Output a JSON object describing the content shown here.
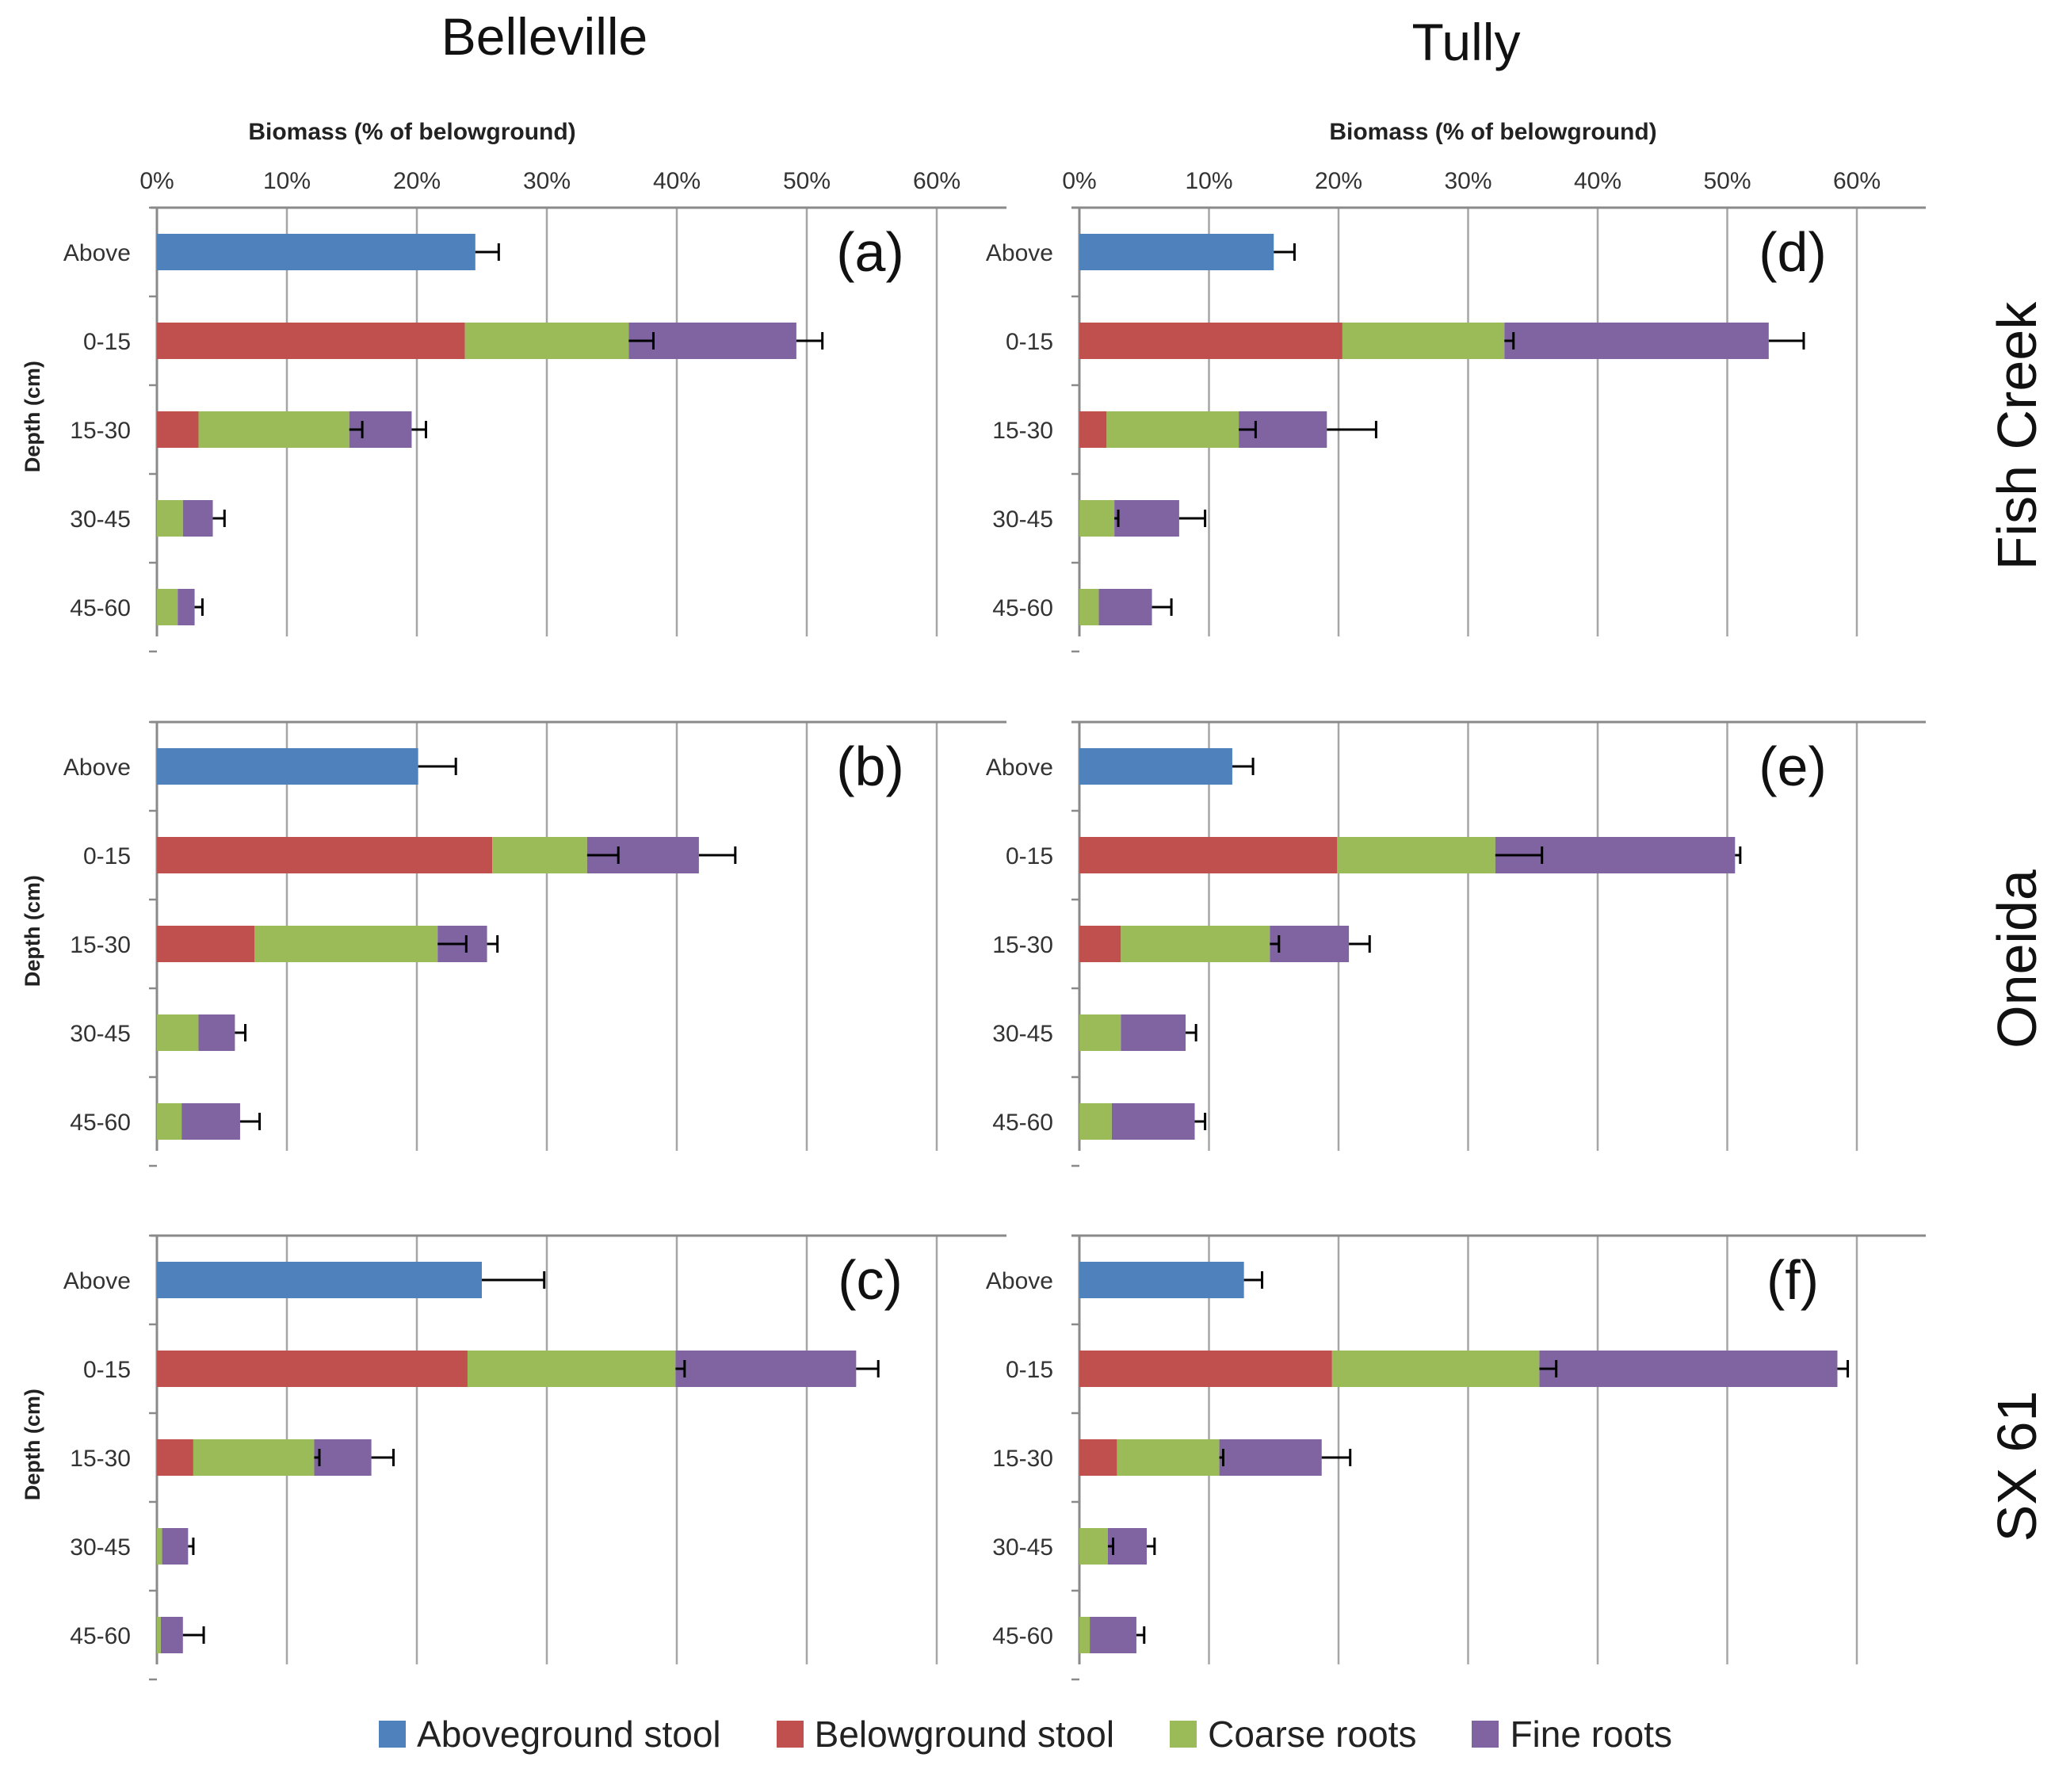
{
  "columns": [
    "Belleville",
    "Tully"
  ],
  "rows": [
    "Fish Creek",
    "Oneida",
    "SX 61"
  ],
  "xlabel": "Biomass (% of belowground)",
  "ylabel": "Depth (cm)",
  "colors": {
    "Aboveground stool": "#4f81bd",
    "Belowground stool": "#c0504d",
    "Coarse roots": "#9bbb59",
    "Fine roots": "#8064a2"
  },
  "legend": [
    "Aboveground stool",
    "Belowground stool",
    "Coarse roots",
    "Fine roots"
  ],
  "chart_data": [
    {
      "type": "bar",
      "orientation": "horizontal",
      "stacked": true,
      "panel": "(a)",
      "site": "Belleville",
      "clone": "Fish Creek",
      "xlabel": "Biomass (% of belowground)",
      "ylabel": "Depth (cm)",
      "xlim": [
        0,
        65
      ],
      "xticks": [
        "0%",
        "10%",
        "20%",
        "30%",
        "40%",
        "50%",
        "60%"
      ],
      "categories": [
        "Above",
        "0-15",
        "15-30",
        "30-45",
        "45-60"
      ],
      "series": [
        {
          "name": "Aboveground stool",
          "values": [
            24.5,
            0,
            0,
            0,
            0
          ],
          "errors": [
            1.8,
            0,
            0,
            0,
            0
          ]
        },
        {
          "name": "Belowground stool",
          "values": [
            0,
            23.7,
            3.2,
            0,
            0
          ],
          "errors": [
            0,
            0,
            0,
            0,
            0
          ]
        },
        {
          "name": "Coarse roots",
          "values": [
            0,
            12.6,
            11.6,
            2.0,
            1.6
          ],
          "errors": [
            0,
            1.9,
            1.0,
            0,
            0
          ]
        },
        {
          "name": "Fine roots",
          "values": [
            0,
            12.9,
            4.8,
            2.3,
            1.3
          ],
          "errors": [
            0,
            2.0,
            1.1,
            0,
            0
          ]
        }
      ],
      "total_errors": [
        0,
        1.8,
        0.8,
        0.9,
        0.6
      ]
    },
    {
      "type": "bar",
      "orientation": "horizontal",
      "stacked": true,
      "panel": "(b)",
      "site": "Belleville",
      "clone": "Oneida",
      "xlabel": "",
      "ylabel": "Depth (cm)",
      "xlim": [
        0,
        65
      ],
      "xticks": [],
      "categories": [
        "Above",
        "0-15",
        "15-30",
        "30-45",
        "45-60"
      ],
      "series": [
        {
          "name": "Aboveground stool",
          "values": [
            20.1,
            0,
            0,
            0,
            0
          ],
          "errors": [
            2.9,
            0,
            0,
            0,
            0
          ]
        },
        {
          "name": "Belowground stool",
          "values": [
            0,
            25.8,
            7.5,
            0,
            0
          ],
          "errors": [
            0,
            0,
            0,
            0,
            0
          ]
        },
        {
          "name": "Coarse roots",
          "values": [
            0,
            7.3,
            14.1,
            3.2,
            1.9
          ],
          "errors": [
            0,
            2.4,
            2.2,
            0,
            0
          ]
        },
        {
          "name": "Fine roots",
          "values": [
            0,
            8.6,
            3.8,
            2.8,
            4.5
          ],
          "errors": [
            0,
            2.8,
            0.8,
            0.8,
            0
          ]
        }
      ],
      "total_errors": [
        0,
        1.2,
        1.0,
        1.2,
        1.5
      ]
    },
    {
      "type": "bar",
      "orientation": "horizontal",
      "stacked": true,
      "panel": "(c)",
      "site": "Belleville",
      "clone": "SX 61",
      "xlabel": "",
      "ylabel": "Depth (cm)",
      "xlim": [
        0,
        65
      ],
      "xticks": [],
      "categories": [
        "Above",
        "0-15",
        "15-30",
        "30-45",
        "45-60"
      ],
      "series": [
        {
          "name": "Aboveground stool",
          "values": [
            25.0,
            0,
            0,
            0,
            0
          ],
          "errors": [
            4.8,
            0,
            0,
            0,
            0
          ]
        },
        {
          "name": "Belowground stool",
          "values": [
            0,
            23.9,
            2.8,
            0,
            0
          ],
          "errors": [
            0,
            0,
            0,
            0,
            0
          ]
        },
        {
          "name": "Coarse roots",
          "values": [
            0,
            16.0,
            9.3,
            0.4,
            0.3
          ],
          "errors": [
            0,
            0.7,
            0.4,
            0,
            0
          ]
        },
        {
          "name": "Fine roots",
          "values": [
            0,
            13.9,
            4.4,
            2.0,
            1.7
          ],
          "errors": [
            0,
            1.7,
            1.7,
            0.4,
            0
          ]
        }
      ],
      "total_errors": [
        0,
        2.7,
        1.0,
        0.3,
        1.6
      ]
    },
    {
      "type": "bar",
      "orientation": "horizontal",
      "stacked": true,
      "panel": "(d)",
      "site": "Tully",
      "clone": "Fish Creek",
      "xlabel": "Biomass (% of belowground)",
      "ylabel": "",
      "xlim": [
        0,
        65
      ],
      "xticks": [
        "0%",
        "10%",
        "20%",
        "30%",
        "40%",
        "50%",
        "60%"
      ],
      "categories": [
        "Above",
        "0-15",
        "15-30",
        "30-45",
        "45-60"
      ],
      "series": [
        {
          "name": "Aboveground stool",
          "values": [
            15.0,
            0,
            0,
            0,
            0
          ],
          "errors": [
            1.6,
            0,
            0,
            0,
            0
          ]
        },
        {
          "name": "Belowground stool",
          "values": [
            0,
            20.3,
            2.1,
            0,
            0
          ],
          "errors": [
            0,
            0,
            0,
            0,
            0
          ]
        },
        {
          "name": "Coarse roots",
          "values": [
            0,
            12.5,
            10.2,
            2.7,
            1.5
          ],
          "errors": [
            0,
            0.7,
            1.3,
            0.3,
            0
          ]
        },
        {
          "name": "Fine roots",
          "values": [
            0,
            20.4,
            6.8,
            5.0,
            4.1
          ],
          "errors": [
            0,
            2.7,
            3.8,
            0,
            0
          ]
        }
      ],
      "total_errors": [
        0,
        2.0,
        0.9,
        2.0,
        1.5
      ]
    },
    {
      "type": "bar",
      "orientation": "horizontal",
      "stacked": true,
      "panel": "(e)",
      "site": "Tully",
      "clone": "Oneida",
      "xlabel": "",
      "ylabel": "",
      "xlim": [
        0,
        65
      ],
      "xticks": [],
      "categories": [
        "Above",
        "0-15",
        "15-30",
        "30-45",
        "45-60"
      ],
      "series": [
        {
          "name": "Aboveground stool",
          "values": [
            11.8,
            0,
            0,
            0,
            0
          ],
          "errors": [
            1.6,
            0,
            0,
            0,
            0
          ]
        },
        {
          "name": "Belowground stool",
          "values": [
            0,
            19.9,
            3.2,
            0,
            0
          ],
          "errors": [
            0,
            0,
            0,
            0,
            0
          ]
        },
        {
          "name": "Coarse roots",
          "values": [
            0,
            12.2,
            11.5,
            3.2,
            2.5
          ],
          "errors": [
            0,
            3.6,
            0.7,
            0,
            0
          ]
        },
        {
          "name": "Fine roots",
          "values": [
            0,
            18.5,
            6.1,
            5.0,
            6.4
          ],
          "errors": [
            0,
            0.4,
            1.6,
            0.8,
            0.8
          ]
        }
      ],
      "total_errors": [
        0,
        1.7,
        0.3,
        0.9,
        1.6
      ]
    },
    {
      "type": "bar",
      "orientation": "horizontal",
      "stacked": true,
      "panel": "(f)",
      "site": "Tully",
      "clone": "SX 61",
      "xlabel": "",
      "ylabel": "",
      "xlim": [
        0,
        65
      ],
      "xticks": [],
      "categories": [
        "Above",
        "0-15",
        "15-30",
        "30-45",
        "45-60"
      ],
      "series": [
        {
          "name": "Aboveground stool",
          "values": [
            12.7,
            0,
            0,
            0,
            0
          ],
          "errors": [
            1.4,
            0,
            0,
            0,
            0
          ]
        },
        {
          "name": "Belowground stool",
          "values": [
            0,
            19.5,
            2.9,
            0,
            0
          ],
          "errors": [
            0,
            0,
            0,
            0,
            0
          ]
        },
        {
          "name": "Coarse roots",
          "values": [
            0,
            16.0,
            7.9,
            2.2,
            0.8
          ],
          "errors": [
            0,
            1.3,
            0.3,
            0.4,
            0
          ]
        },
        {
          "name": "Fine roots",
          "values": [
            0,
            23.0,
            7.9,
            3.0,
            3.6
          ],
          "errors": [
            0,
            0.8,
            0,
            0,
            0
          ]
        }
      ],
      "total_errors": [
        0,
        2.0,
        2.2,
        0.6,
        0.6
      ]
    }
  ]
}
